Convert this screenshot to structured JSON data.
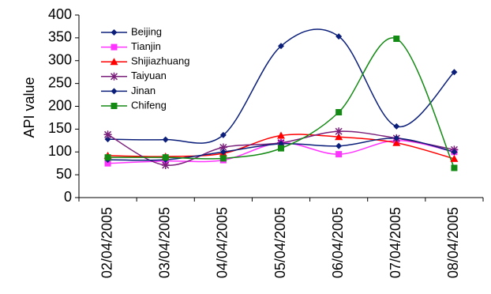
{
  "chart_data": {
    "type": "line",
    "title": "",
    "xlabel": "",
    "ylabel": "API value",
    "ylim": [
      0,
      400
    ],
    "yticks": [
      "0",
      "50",
      "100",
      "150",
      "200",
      "250",
      "300",
      "350",
      "400"
    ],
    "categories": [
      "02/04/2005",
      "03/04/2005",
      "04/04/2005",
      "05/04/2005",
      "06/04/2005",
      "07/04/2005",
      "08/04/2005"
    ],
    "grid": false,
    "legend_position": "top-left",
    "series": [
      {
        "name": "Beijing",
        "color": "#0b1f7a",
        "marker": "diamond",
        "values": [
          128,
          127,
          137,
          332,
          353,
          156,
          275
        ]
      },
      {
        "name": "Tianjin",
        "color": "#ff33ff",
        "marker": "square",
        "values": [
          75,
          80,
          82,
          120,
          95,
          125,
          100
        ]
      },
      {
        "name": "Shijiazhuang",
        "color": "#ff0000",
        "marker": "triangle",
        "values": [
          92,
          90,
          97,
          136,
          133,
          120,
          85
        ]
      },
      {
        "name": "Taiyuan",
        "color": "#7a1f7a",
        "marker": "asterisk",
        "values": [
          138,
          71,
          110,
          120,
          145,
          130,
          105
        ]
      },
      {
        "name": "Jinan",
        "color": "#0b1f7a",
        "marker": "diamond",
        "values": [
          83,
          83,
          100,
          118,
          113,
          130,
          100
        ]
      },
      {
        "name": "Chifeng",
        "color": "#138a13",
        "marker": "square",
        "values": [
          88,
          88,
          86,
          108,
          187,
          348,
          65
        ]
      }
    ]
  }
}
